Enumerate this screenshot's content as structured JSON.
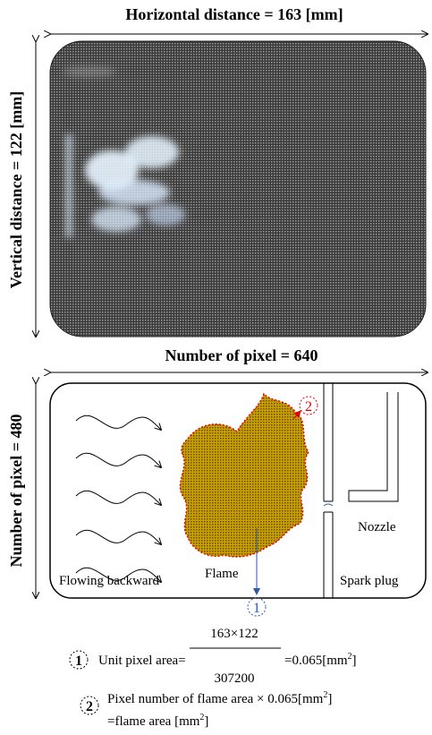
{
  "top_image": {
    "width_label": "Horizontal distance = 163 [mm]",
    "height_label": "Vertical distance = 122 [mm]"
  },
  "pixel_diagram": {
    "width_label": "Number of pixel = 640",
    "height_label": "Number of pixel = 480",
    "flow_label": "Flowing backward",
    "flame_label": "Flame",
    "spark_plug_label": "Spark plug",
    "nozzle_label": "Nozzle",
    "markers": [
      "1",
      "2"
    ]
  },
  "notes": [
    {
      "marker": "1",
      "text": "Unit pixel area=",
      "numerator": "163×122",
      "denominator": "307200",
      "result": "=0.065[mm",
      "sup": "2",
      "close": "]"
    },
    {
      "marker": "2",
      "line1": "Pixel number of flame area × 0.065[mm",
      "sup1": "2",
      "close1": "]",
      "line2": "=flame area [mm",
      "sup2": "2",
      "close2": "]"
    }
  ]
}
